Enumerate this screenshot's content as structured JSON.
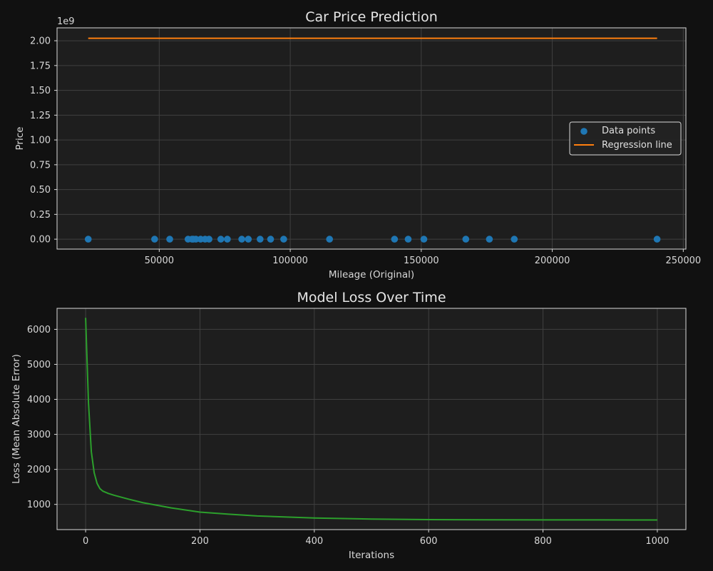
{
  "colors": {
    "figure_bg": "#111111",
    "axes_bg": "#1e1e1e",
    "grid": "#404040",
    "spine": "#d9d9d9",
    "scatter": "#1f77b4",
    "regression": "#ff7f0e",
    "loss": "#2ca02c"
  },
  "chart_data": [
    {
      "type": "scatter",
      "title": "Car Price Prediction",
      "xlabel": "Mileage (Original)",
      "ylabel": "Price",
      "y_offset_label": "1e9",
      "xlim": [
        11000,
        251000
      ],
      "ylim": [
        -0.1,
        2.13
      ],
      "xticks": [
        50000,
        100000,
        150000,
        200000,
        250000
      ],
      "yticks": [
        0.0,
        0.25,
        0.5,
        0.75,
        1.0,
        1.25,
        1.5,
        1.75,
        2.0
      ],
      "ytick_labels": [
        "0.00",
        "0.25",
        "0.50",
        "0.75",
        "1.00",
        "1.25",
        "1.50",
        "1.75",
        "2.00"
      ],
      "grid": true,
      "legend": {
        "placement": "center-right",
        "entries": [
          "Data points",
          "Regression line"
        ]
      },
      "series": [
        {
          "name": "Data points",
          "kind": "scatter",
          "x": [
            22899,
            48235,
            54000,
            61000,
            62500,
            63000,
            64000,
            65800,
            67500,
            69000,
            73500,
            76000,
            81500,
            84000,
            88500,
            92500,
            97500,
            115000,
            139800,
            145000,
            151000,
            167000,
            176000,
            185500,
            240000
          ],
          "y": [
            0,
            0,
            0,
            0,
            0,
            0,
            0,
            0,
            0,
            0,
            0,
            0,
            0,
            0,
            0,
            0,
            0,
            0,
            0,
            0,
            0,
            0,
            0,
            0,
            0
          ]
        },
        {
          "name": "Regression line",
          "kind": "line",
          "x": [
            22899,
            240000
          ],
          "y": [
            2.025,
            2.025
          ]
        }
      ]
    },
    {
      "type": "line",
      "title": "Model Loss Over Time",
      "xlabel": "Iterations",
      "ylabel": "Loss (Mean Absolute Error)",
      "xlim": [
        -50,
        1050
      ],
      "ylim": [
        280,
        6600
      ],
      "xticks": [
        0,
        200,
        400,
        600,
        800,
        1000
      ],
      "yticks": [
        1000,
        2000,
        3000,
        4000,
        5000,
        6000
      ],
      "grid": true,
      "series": [
        {
          "kind": "line",
          "x": [
            0,
            5,
            10,
            15,
            20,
            25,
            30,
            40,
            50,
            75,
            100,
            150,
            200,
            250,
            300,
            400,
            500,
            600,
            700,
            800,
            900,
            1000
          ],
          "y": [
            6330,
            3900,
            2500,
            1900,
            1600,
            1450,
            1380,
            1310,
            1260,
            1150,
            1050,
            900,
            780,
            720,
            670,
            610,
            580,
            565,
            560,
            558,
            557,
            556
          ]
        }
      ]
    }
  ]
}
